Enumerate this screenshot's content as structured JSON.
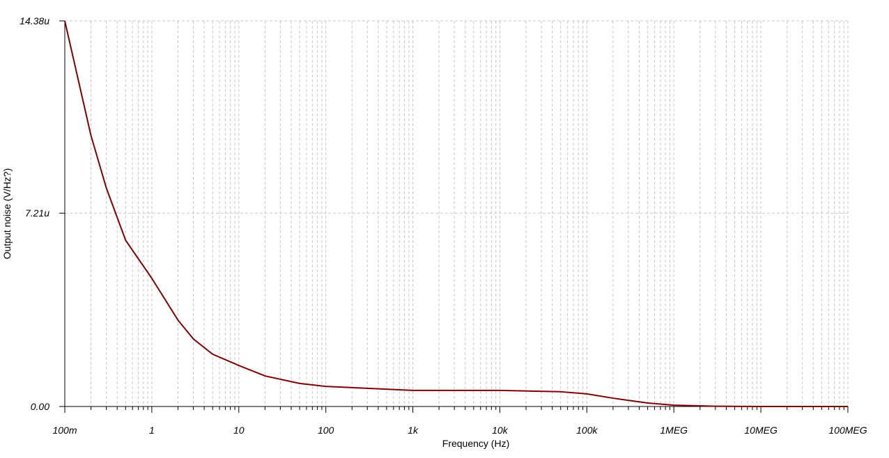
{
  "chart_data": {
    "type": "line",
    "x_label": "Frequency (Hz)",
    "y_label": "Output noise (V/Hz?)",
    "x_scale": "log",
    "grid": true,
    "xlim": [
      0.1,
      100000000
    ],
    "ylim": [
      0,
      14.38
    ],
    "xticks": [
      {
        "value": 0.1,
        "label": "100m"
      },
      1,
      10,
      100,
      {
        "value": 1000,
        "label": "1k"
      },
      {
        "value": 10000,
        "label": "10k"
      },
      {
        "value": 100000,
        "label": "100k"
      },
      {
        "value": 1000000,
        "label": "1MEG"
      },
      {
        "value": 10000000,
        "label": "10MEG"
      },
      {
        "value": 100000000,
        "label": "100MEG"
      }
    ],
    "yticks": [
      {
        "value": 0,
        "label": "0.00"
      },
      {
        "value": 7.21,
        "label": "7.21u"
      },
      {
        "value": 14.38,
        "label": "14.38u"
      }
    ],
    "x": [
      0.1,
      0.2,
      0.3,
      0.5,
      1,
      2,
      3,
      5,
      10,
      20,
      50,
      100,
      1000,
      10000,
      50000,
      100000,
      200000,
      500000,
      1000000,
      3000000,
      10000000,
      100000000
    ],
    "series": [
      {
        "color": "#800000",
        "values": [
          14.38,
          10.1,
          8.15,
          6.2,
          4.78,
          3.22,
          2.52,
          1.95,
          1.53,
          1.14,
          0.86,
          0.75,
          0.6,
          0.6,
          0.55,
          0.47,
          0.31,
          0.13,
          0.05,
          0.01,
          0,
          0
        ]
      }
    ]
  }
}
